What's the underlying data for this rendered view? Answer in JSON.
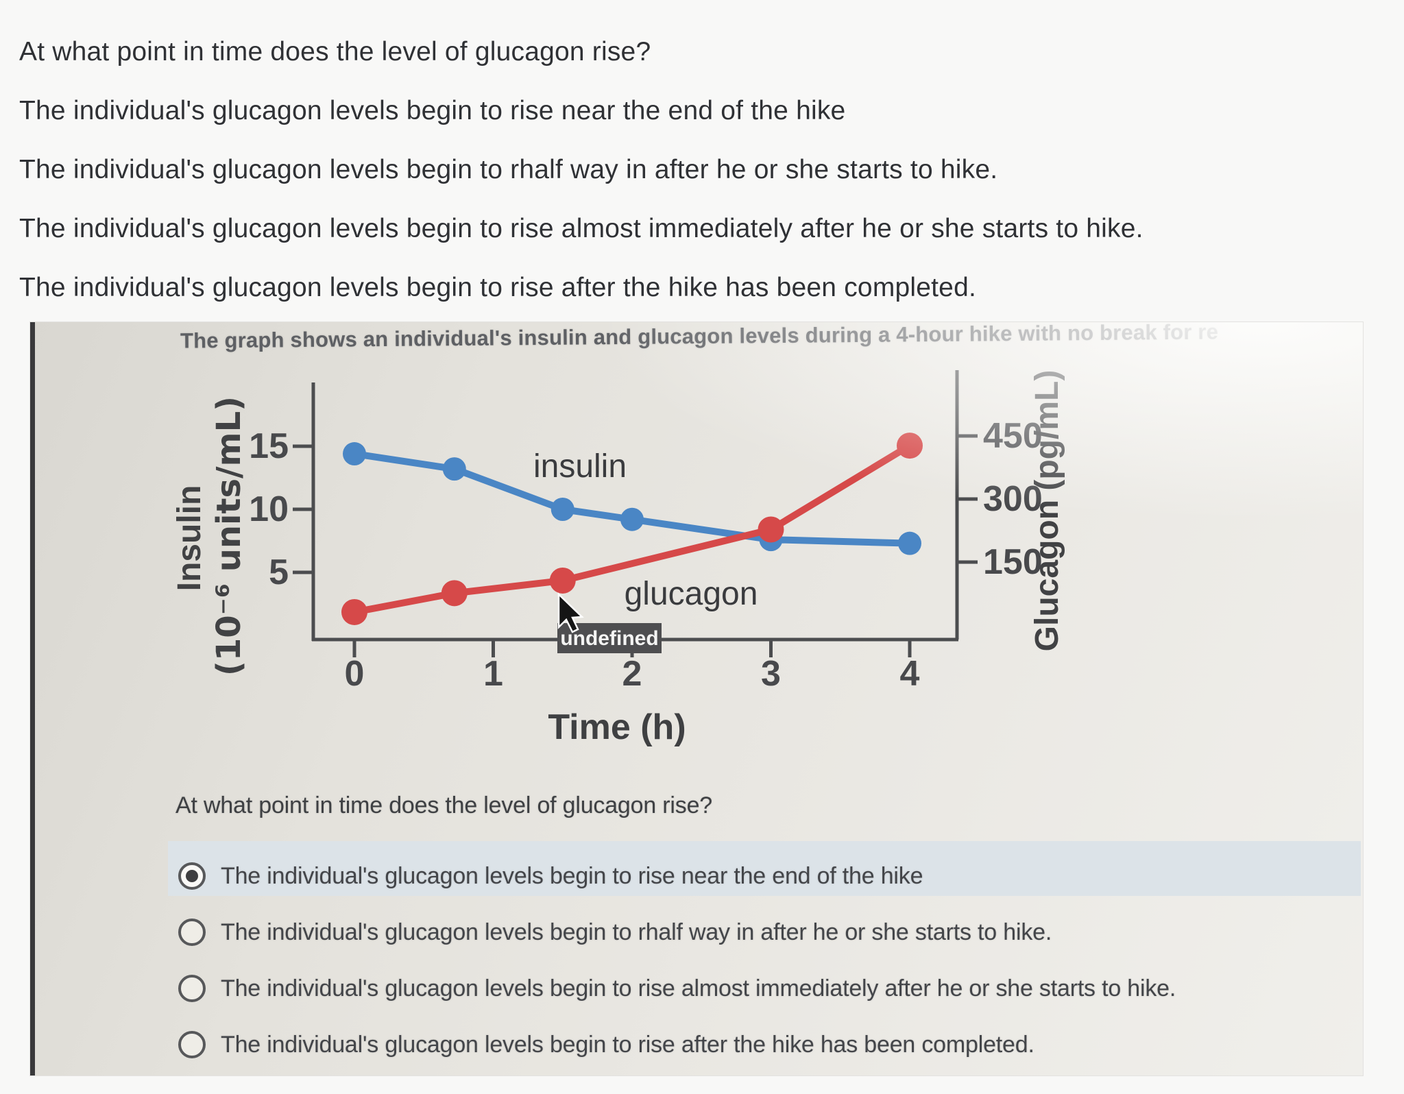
{
  "top_section": {
    "question": "At what point in time does the level of glucagon rise?",
    "options": [
      "The individual's glucagon levels begin to rise near the end of the hike",
      "The individual's glucagon levels begin to rhalf way in after he or she starts to hike.",
      "The individual's glucagon levels begin to rise almost immediately after he or she starts to hike.",
      "The individual's glucagon levels begin to rise after the hike has been completed."
    ]
  },
  "panel": {
    "title": "The graph shows an individual's insulin and glucagon levels during a 4-hour hike with no break for re",
    "question": "At what point in time does the level of glucagon rise?",
    "options": [
      {
        "label": "The individual's glucagon levels begin to rise near the end of the hike",
        "selected": true
      },
      {
        "label": "The individual's glucagon levels begin to rhalf way in after he or she starts to hike.",
        "selected": false
      },
      {
        "label": "The individual's glucagon levels begin to rise almost immediately after he or she starts to hike.",
        "selected": false
      },
      {
        "label": "The individual's glucagon levels begin to rise after the hike has been completed.",
        "selected": false
      }
    ]
  },
  "chart_data": {
    "type": "line",
    "xlabel": "Time (h)",
    "ylabel_left_line1": "Insulin",
    "ylabel_left_line2": "(10⁻⁶ units/mL)",
    "ylabel_right": "Glucagon (pg/mL)",
    "x_ticks": [
      0,
      1,
      2,
      3,
      4
    ],
    "left_axis_ticks": [
      15,
      10,
      5
    ],
    "right_axis_ticks": [
      450,
      300,
      150
    ],
    "xlim": [
      0,
      4.3
    ],
    "ylim_left": [
      0,
      17.5
    ],
    "ylim_right": [
      0,
      525
    ],
    "grid": false,
    "legend": "inline-labels",
    "tooltip_text": "undefined",
    "series": [
      {
        "name": "insulin",
        "color": "#4a86c5",
        "axis": "left",
        "x": [
          0,
          0.72,
          1.5,
          2,
          3,
          4
        ],
        "y": [
          14.4,
          13.2,
          10,
          9.2,
          7.6,
          7.3
        ],
        "point_radius": 17
      },
      {
        "name": "glucagon",
        "color": "#d64949",
        "axis": "right",
        "x": [
          0,
          0.72,
          1.5,
          3,
          4
        ],
        "y": [
          55,
          100,
          130,
          250,
          450
        ],
        "y_display_insulin_scale": [
          1.85,
          3.35,
          4.35,
          8.4,
          15.05
        ],
        "point_radius": 19
      }
    ],
    "colors": {
      "tooltip_bg": "#4e4e50",
      "axis": "#4c4d4f"
    }
  }
}
